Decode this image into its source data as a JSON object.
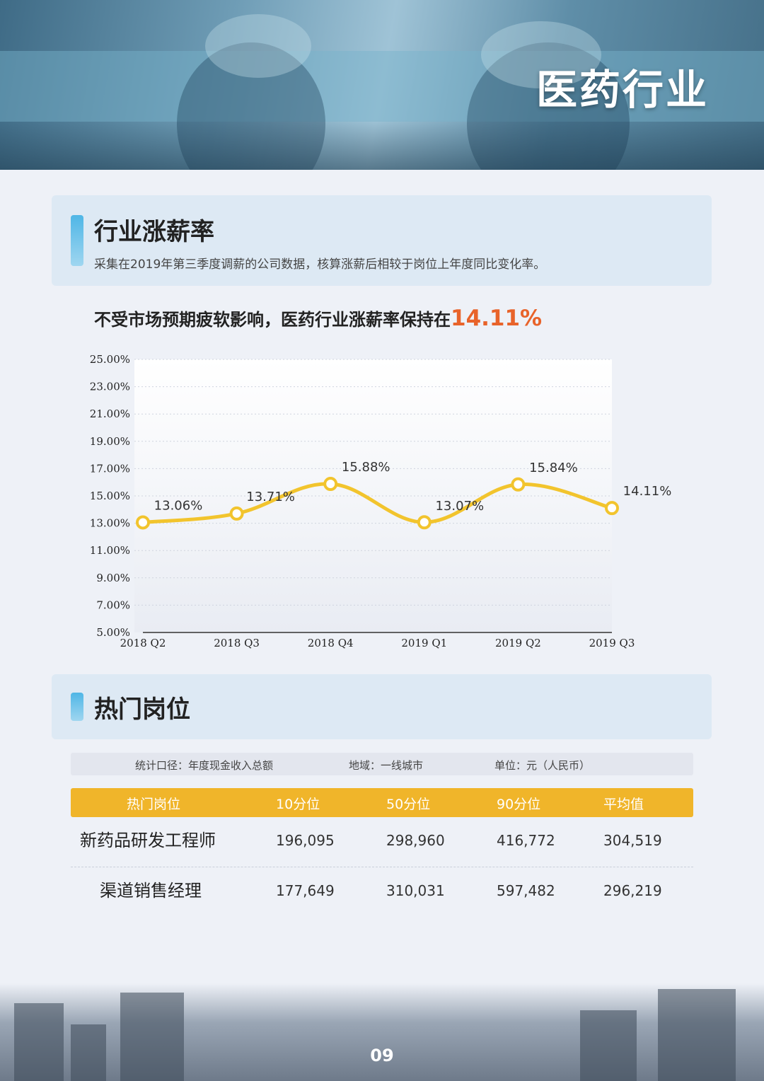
{
  "hero": {
    "title": "医药行业"
  },
  "section1": {
    "title": "行业涨薪率",
    "subtitle": "采集在2019年第三季度调薪的公司数据，核算涨薪后相较于岗位上年度同比变化率。",
    "headline_prefix": "不受市场预期疲软影响，医药行业涨薪率保持在",
    "headline_value": "14.11%"
  },
  "chart_data": {
    "type": "line",
    "categories": [
      "2018 Q2",
      "2018 Q3",
      "2018 Q4",
      "2019 Q1",
      "2019 Q2",
      "2019 Q3"
    ],
    "series": [
      {
        "values": [
          13.06,
          13.71,
          15.88,
          13.07,
          15.84,
          14.11
        ]
      }
    ],
    "data_labels": [
      "13.06%",
      "13.71%",
      "15.88%",
      "13.07%",
      "15.84%",
      "14.11%"
    ],
    "y_ticks": [
      "5.00%",
      "7.00%",
      "9.00%",
      "11.00%",
      "13.00%",
      "15.00%",
      "17.00%",
      "19.00%",
      "21.00%",
      "23.00%",
      "25.00%"
    ],
    "ylim": [
      5,
      25
    ],
    "grid": true,
    "line_color": "#f2c42d"
  },
  "section2": {
    "title": "热门岗位"
  },
  "table": {
    "meta": [
      "统计口径：年度现金收入总额",
      "地域：一线城市",
      "单位：元（人民币）"
    ],
    "headers": [
      "热门岗位",
      "10分位",
      "50分位",
      "90分位",
      "平均值"
    ],
    "rows": [
      [
        "新药品研发工程师",
        "196,095",
        "298,960",
        "416,772",
        "304,519"
      ],
      [
        "渠道销售经理",
        "177,649",
        "310,031",
        "597,482",
        "296,219"
      ]
    ],
    "header_color": "#f0b52a"
  },
  "footer": {
    "page_number": "09"
  }
}
